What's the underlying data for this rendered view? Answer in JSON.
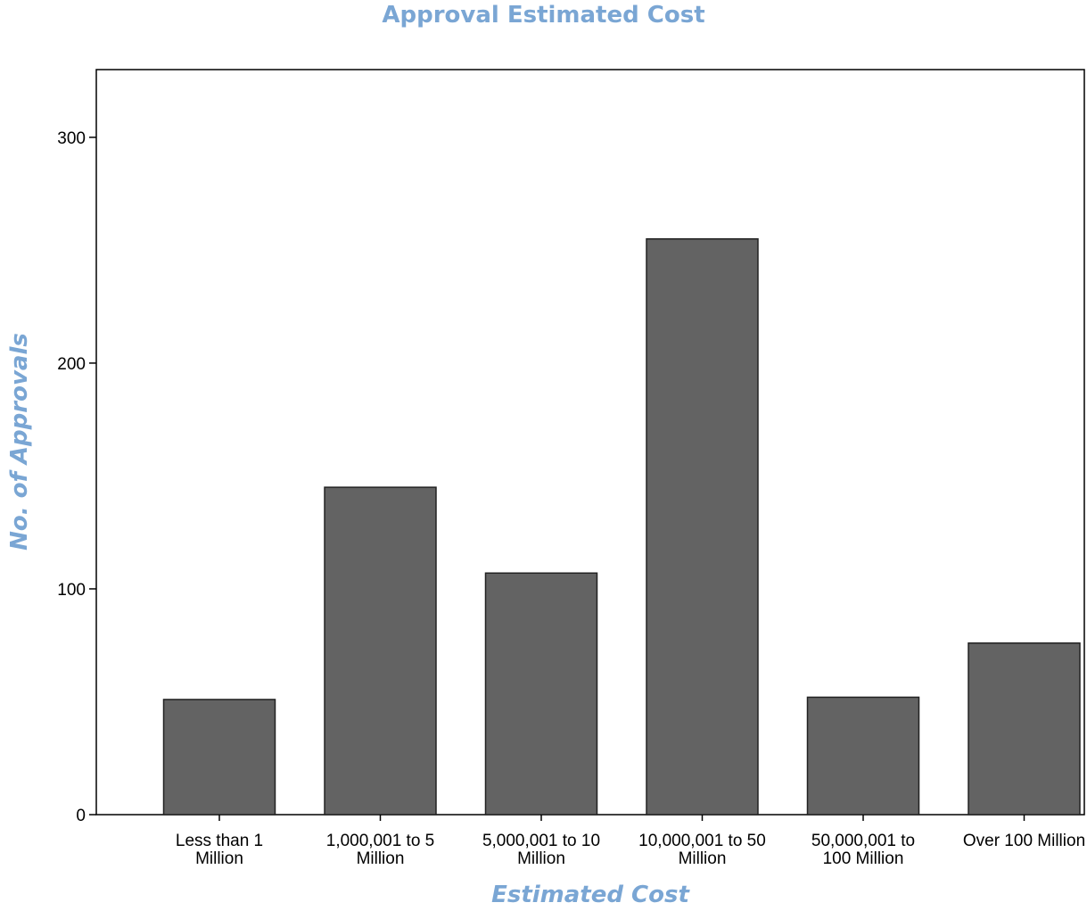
{
  "chart_data": {
    "type": "bar",
    "title": "Approval Estimated Cost",
    "xlabel": "Estimated Cost",
    "ylabel": "No. of Approvals",
    "categories": [
      [
        "Less than 1",
        "Million"
      ],
      [
        "1,000,001 to 5",
        "Million"
      ],
      [
        "5,000,001 to 10",
        "Million"
      ],
      [
        "10,000,001 to 50",
        "Million"
      ],
      [
        "50,000,001 to",
        "100 Million"
      ],
      [
        "Over 100 Million"
      ]
    ],
    "values": [
      51,
      145,
      107,
      255,
      52,
      76
    ],
    "ylim": [
      0,
      330
    ],
    "yticks": [
      0,
      100,
      200,
      300
    ],
    "grid": false,
    "bar_color": "#636363",
    "title_color": "#7aa6d4"
  }
}
